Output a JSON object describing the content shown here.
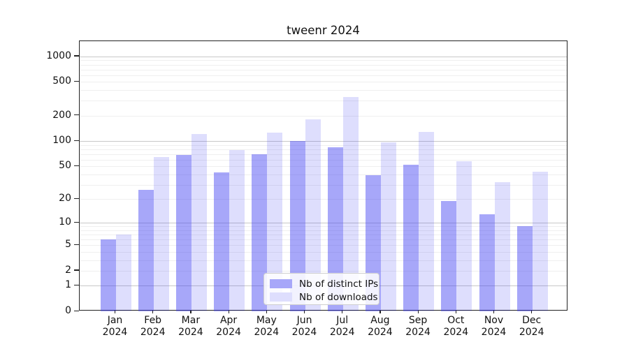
{
  "chart_data": {
    "type": "bar",
    "title": "tweenr 2024",
    "y_scale": "log1p",
    "y_ticks": [
      0,
      1,
      2,
      5,
      10,
      20,
      50,
      100,
      200,
      500,
      1000
    ],
    "ylim": [
      0,
      1800
    ],
    "grid": "both",
    "legend_position": "lower center",
    "categories": [
      {
        "month": "Jan",
        "year": "2024"
      },
      {
        "month": "Feb",
        "year": "2024"
      },
      {
        "month": "Mar",
        "year": "2024"
      },
      {
        "month": "Apr",
        "year": "2024"
      },
      {
        "month": "May",
        "year": "2024"
      },
      {
        "month": "Jun",
        "year": "2024"
      },
      {
        "month": "Jul",
        "year": "2024"
      },
      {
        "month": "Aug",
        "year": "2024"
      },
      {
        "month": "Sep",
        "year": "2024"
      },
      {
        "month": "Oct",
        "year": "2024"
      },
      {
        "month": "Nov",
        "year": "2024"
      },
      {
        "month": "Dec",
        "year": "2024"
      }
    ],
    "series": [
      {
        "name": "Nb of distinct IPs",
        "fill": "rgba(60,60,242,0.45)",
        "swatch": "#a7a7f9",
        "values": [
          6,
          26,
          68,
          42,
          69,
          100,
          85,
          39,
          52,
          19,
          13,
          9
        ]
      },
      {
        "name": "Nb of downloads",
        "fill": "rgba(60,60,242,0.17)",
        "swatch": "#dedefd",
        "values": [
          7,
          65,
          122,
          78,
          125,
          180,
          335,
          97,
          129,
          57,
          32,
          43
        ]
      }
    ]
  },
  "colors": {
    "grid_major": "#c8c8c8",
    "grid_minor": "#efefef",
    "spine": "#222222",
    "background": "#ffffff"
  }
}
